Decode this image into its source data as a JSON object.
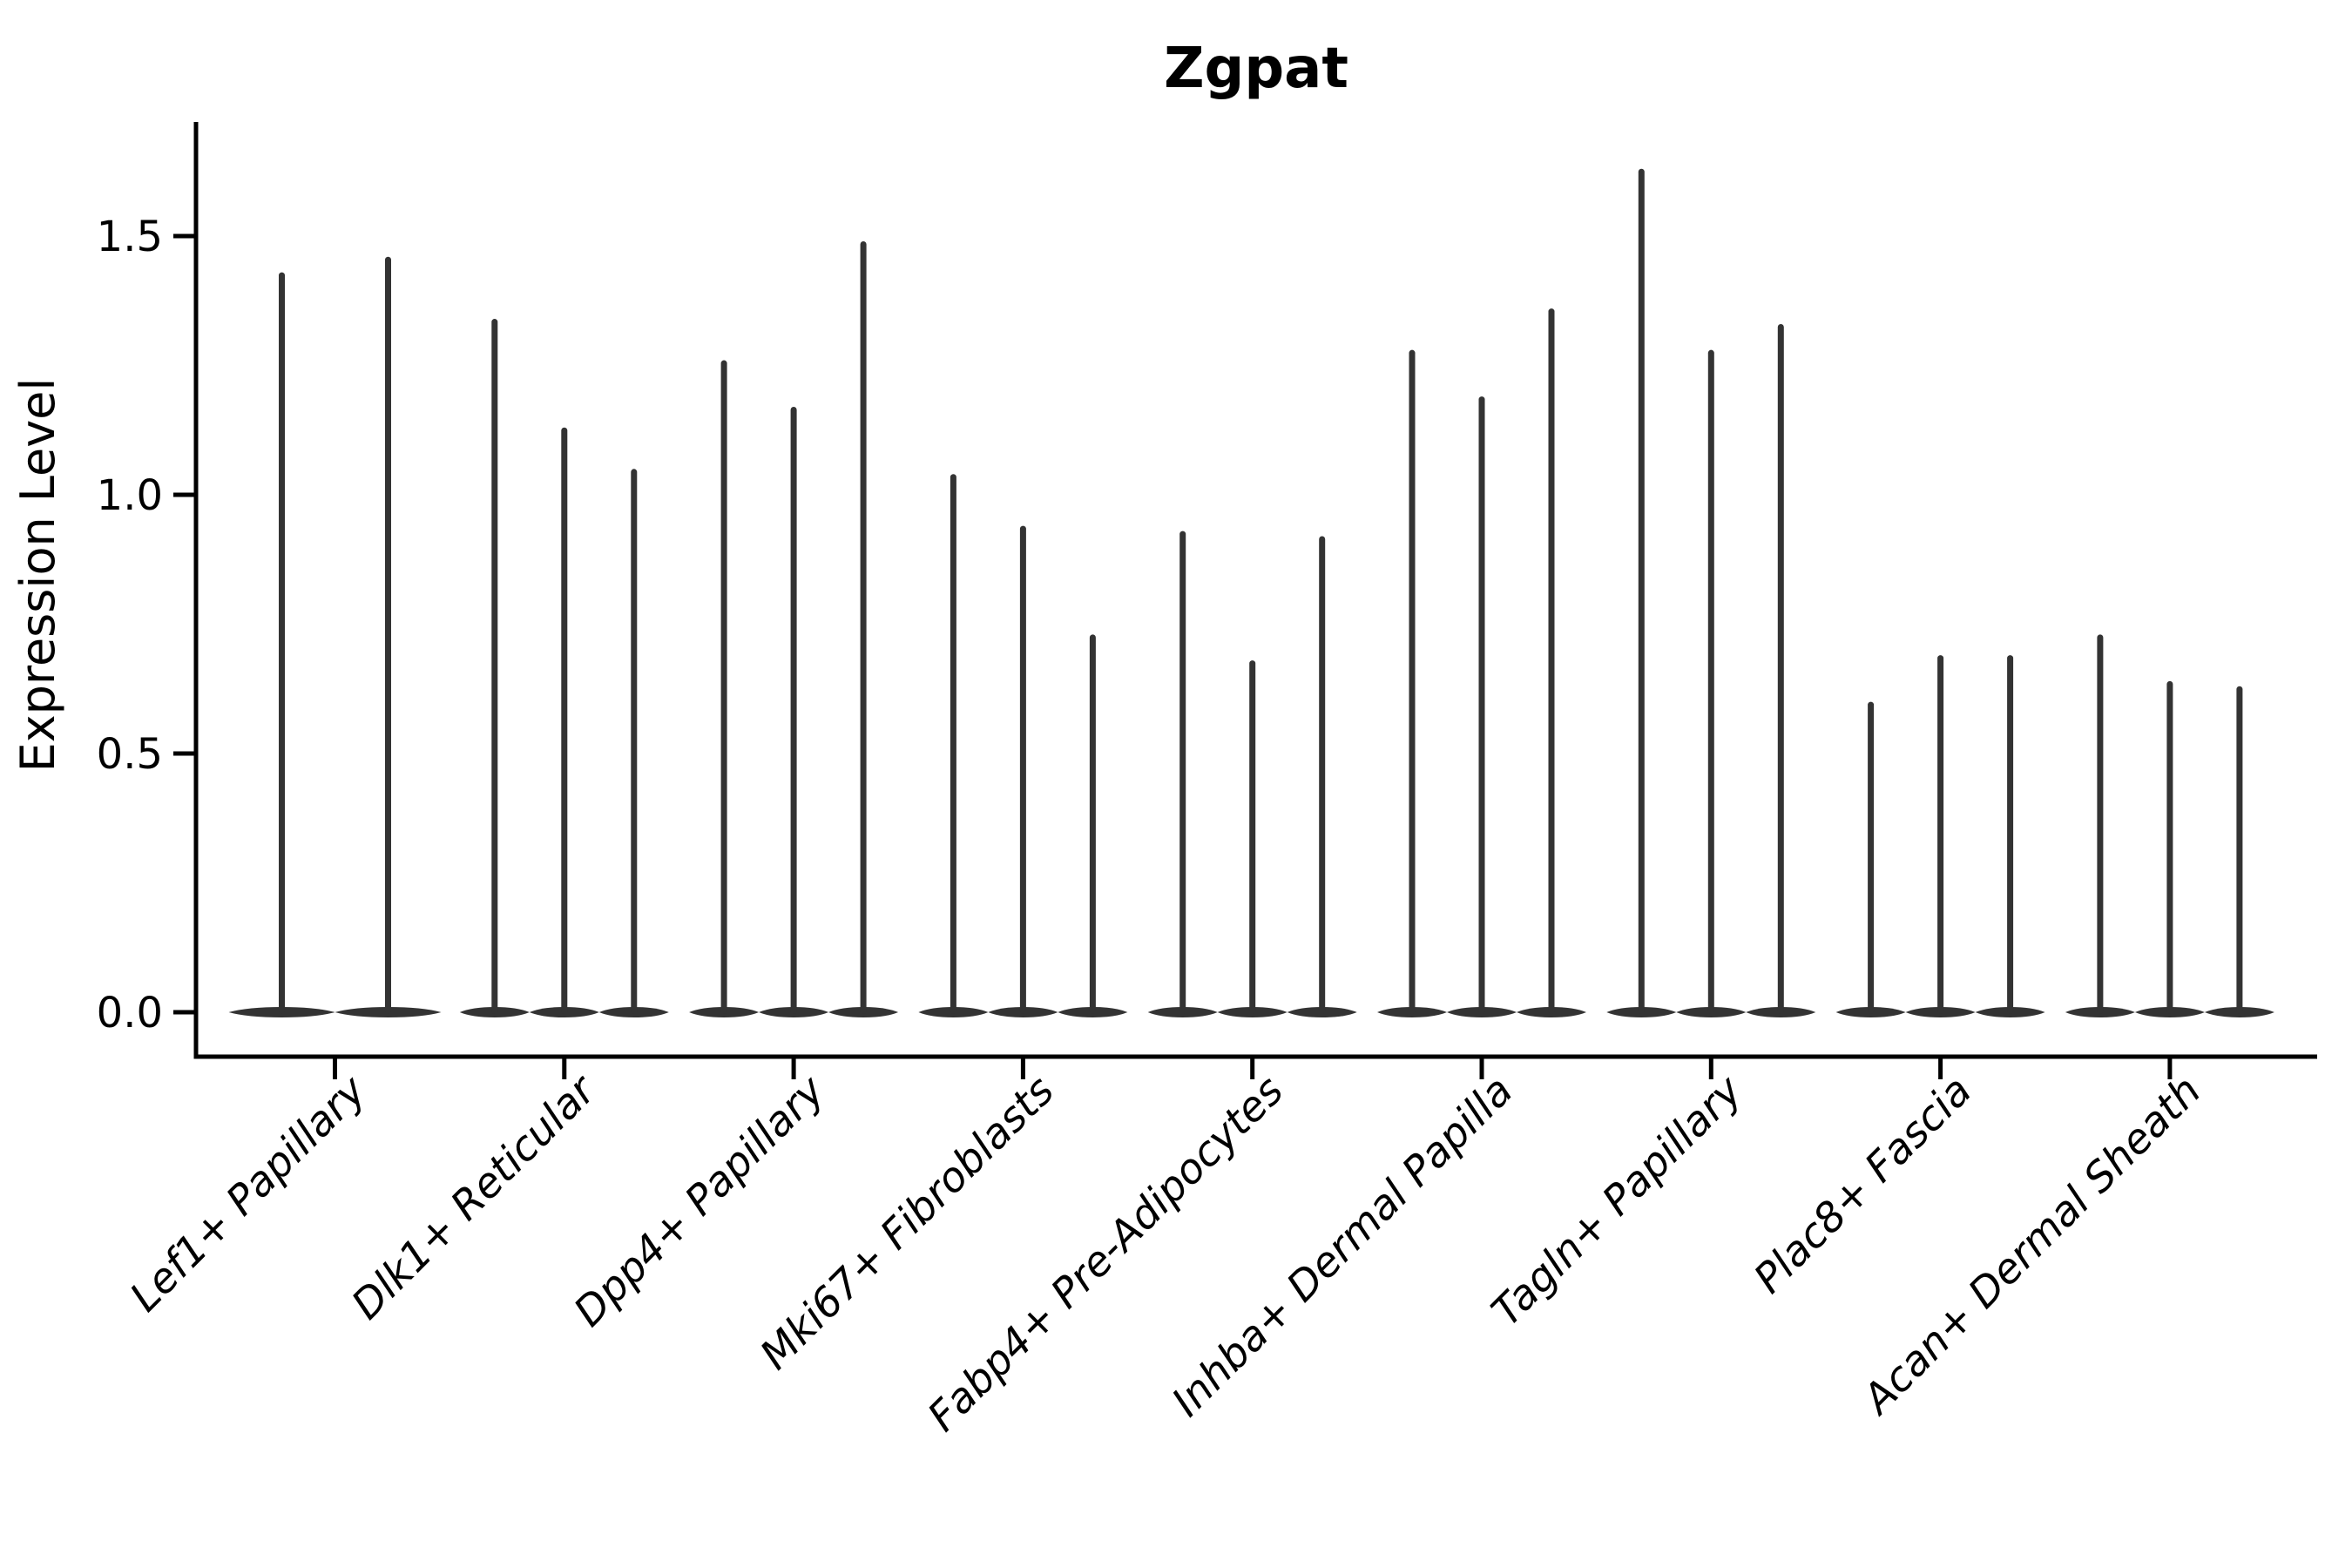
{
  "chart_data": {
    "type": "violin",
    "title": "Zgpat",
    "ylabel": "Expression Level",
    "xlabel": "",
    "grid": false,
    "legend": "none",
    "ylim": [
      -0.08,
      1.72
    ],
    "yticks": {
      "values": [
        0.0,
        0.5,
        1.0,
        1.5
      ],
      "labels": [
        "0.0",
        "0.5",
        "1.0",
        "1.5"
      ]
    },
    "violin_color": "#333333",
    "axis_color": "#000000",
    "categories": [
      "Lef1+ Papillary",
      "Dlk1+ Reticular",
      "Dpp4+ Papillary",
      "Mki67+ Fibroblasts",
      "Fabp4+ Pre-Adipocytes",
      "Inhba+ Dermal Papilla",
      "Tagln+ Papillary",
      "Plac8+ Fascia",
      "Acan+ Dermal Sheath"
    ],
    "series": [
      {
        "category": "Lef1+ Papillary",
        "violin_maxima": [
          1.43,
          1.46
        ],
        "baseline_value": 0.0
      },
      {
        "category": "Dlk1+ Reticular",
        "violin_maxima": [
          1.34,
          1.13,
          1.05
        ],
        "baseline_value": 0.0
      },
      {
        "category": "Dpp4+ Papillary",
        "violin_maxima": [
          1.26,
          1.17,
          1.49
        ],
        "baseline_value": 0.0
      },
      {
        "category": "Mki67+ Fibroblasts",
        "violin_maxima": [
          1.04,
          0.94,
          0.73
        ],
        "baseline_value": 0.0
      },
      {
        "category": "Fabp4+ Pre-Adipocytes",
        "violin_maxima": [
          0.93,
          0.68,
          0.92
        ],
        "baseline_value": 0.0
      },
      {
        "category": "Inhba+ Dermal Papilla",
        "violin_maxima": [
          1.28,
          1.19,
          1.36
        ],
        "baseline_value": 0.0
      },
      {
        "category": "Tagln+ Papillary",
        "violin_maxima": [
          1.63,
          1.28,
          1.33
        ],
        "baseline_value": 0.0
      },
      {
        "category": "Plac8+ Fascia",
        "violin_maxima": [
          0.6,
          0.69,
          0.69
        ],
        "baseline_value": 0.0
      },
      {
        "category": "Acan+ Dermal Sheath",
        "violin_maxima": [
          0.73,
          0.64,
          0.63
        ],
        "baseline_value": 0.0
      }
    ],
    "annotation": "Each category shows thin violins: a wide flat density mass at 0 with a narrow tail rising to the maximum expression value."
  }
}
